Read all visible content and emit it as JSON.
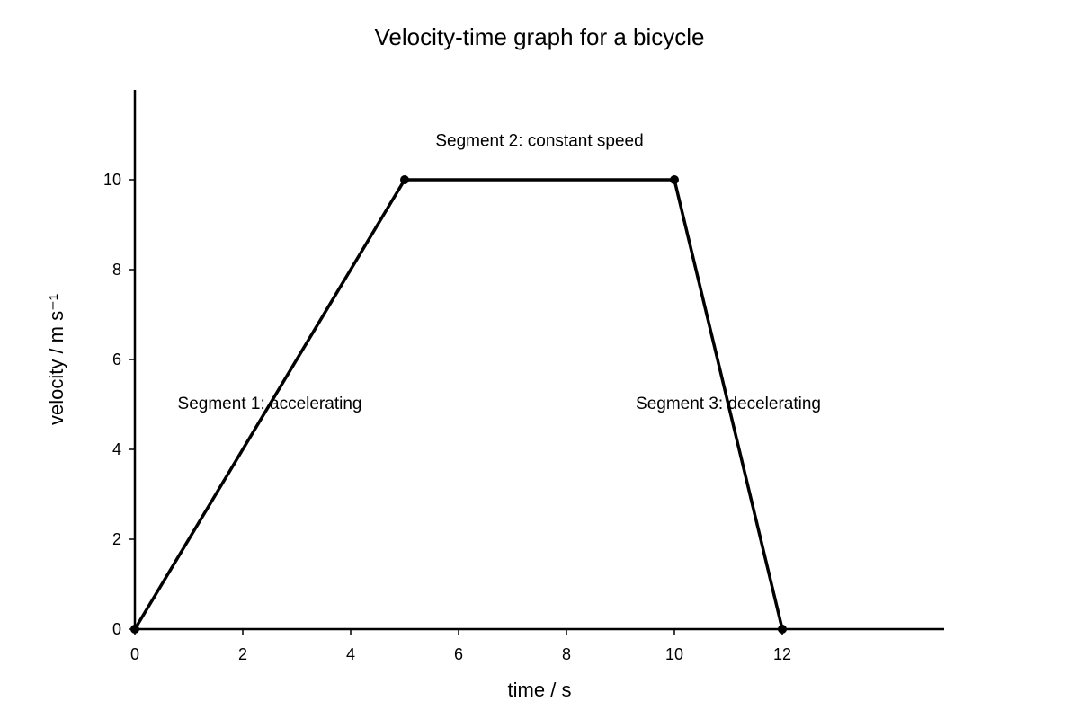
{
  "chart_data": {
    "type": "line",
    "title": "Velocity-time graph for a bicycle",
    "xlabel": "time / s",
    "ylabel": "velocity / m s⁻¹",
    "xlim": [
      0,
      15
    ],
    "ylim": [
      0,
      12
    ],
    "xticks": [
      0,
      2,
      4,
      6,
      8,
      10,
      12
    ],
    "yticks": [
      0,
      2,
      4,
      6,
      8,
      10
    ],
    "grid": false,
    "legend": "none",
    "series": [
      {
        "x": [
          0,
          5,
          10,
          12
        ],
        "y": [
          0,
          10,
          10,
          0
        ],
        "color": "#000000",
        "markers": true
      }
    ],
    "annotations": [
      {
        "text": "Segment 1: accelerating",
        "x": 2.5,
        "y": 4.9
      },
      {
        "text": "Segment 2: constant speed",
        "x": 7.5,
        "y": 10.75
      },
      {
        "text": "Segment 3: decelerating",
        "x": 11,
        "y": 4.9
      }
    ]
  }
}
